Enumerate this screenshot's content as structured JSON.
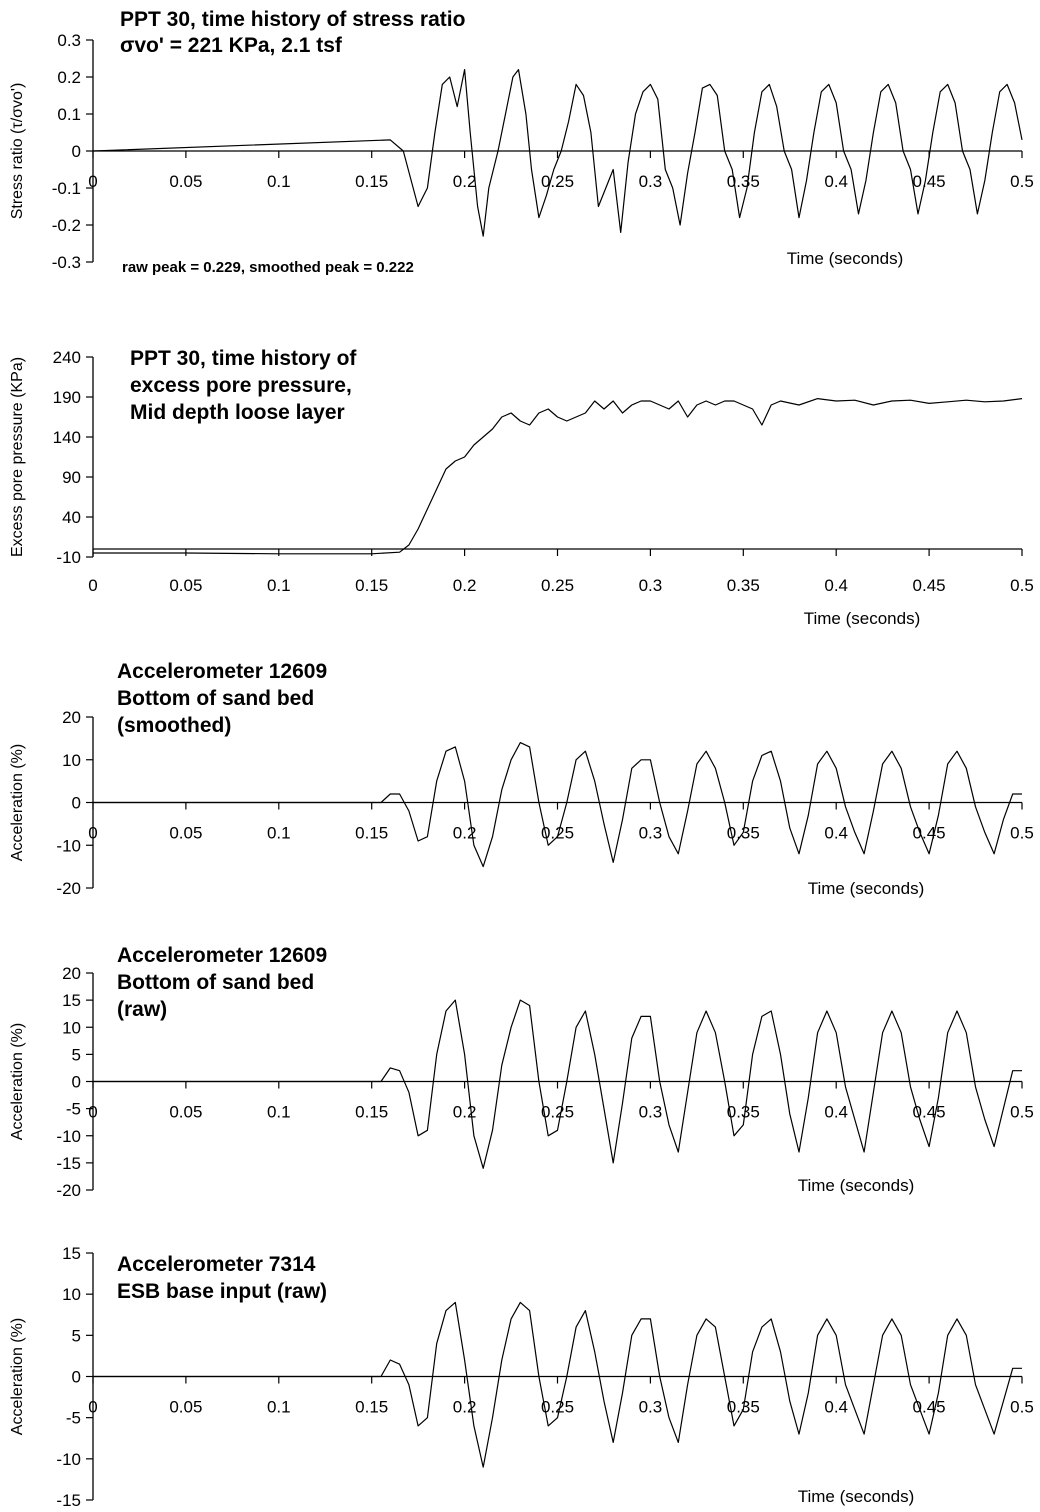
{
  "chart_data": [
    {
      "type": "line",
      "title": [
        "PPT 30, time history of stress ratio",
        "σvo' = 221 KPa, 2.1 tsf"
      ],
      "annotation": "raw peak = 0.229, smoothed peak = 0.222",
      "xlabel": "Time (seconds)",
      "ylabel": "Stress ratio (τ/σvo')",
      "xlim": [
        0,
        0.5
      ],
      "ylim": [
        -0.3,
        0.3
      ],
      "x_ticks": [
        "0",
        "0.05",
        "0.1",
        "0.15",
        "0.2",
        "0.25",
        "0.3",
        "0.35",
        "0.4",
        "0.45",
        "0.5"
      ],
      "y_ticks": [
        "0.3",
        "0.2",
        "0.1",
        "0",
        "-0.1",
        "-0.2",
        "-0.3"
      ],
      "series": [
        {
          "x": [
            0,
            0.16,
            0.167,
            0.175,
            0.18,
            0.184,
            0.188,
            0.192,
            0.196,
            0.2,
            0.203,
            0.207,
            0.21,
            0.213,
            0.218,
            0.222,
            0.226,
            0.229,
            0.233,
            0.236,
            0.24,
            0.244,
            0.248,
            0.252,
            0.256,
            0.26,
            0.264,
            0.268,
            0.272,
            0.276,
            0.28,
            0.284,
            0.288,
            0.292,
            0.296,
            0.3,
            0.304,
            0.308,
            0.312,
            0.316,
            0.32,
            0.324,
            0.328,
            0.332,
            0.336,
            0.34,
            0.344,
            0.348,
            0.352,
            0.356,
            0.36,
            0.364,
            0.368,
            0.372,
            0.376,
            0.38,
            0.384,
            0.388,
            0.392,
            0.396,
            0.4,
            0.404,
            0.408,
            0.412,
            0.416,
            0.42,
            0.424,
            0.428,
            0.432,
            0.436,
            0.44,
            0.444,
            0.448,
            0.452,
            0.456,
            0.46,
            0.464,
            0.468,
            0.472,
            0.476,
            0.48,
            0.484,
            0.488,
            0.492,
            0.496,
            0.5
          ],
          "y": [
            0,
            0.03,
            0.0,
            -0.15,
            -0.1,
            0.05,
            0.18,
            0.2,
            0.12,
            0.22,
            0.05,
            -0.15,
            -0.23,
            -0.1,
            0.0,
            0.1,
            0.2,
            0.22,
            0.1,
            -0.05,
            -0.18,
            -0.12,
            -0.05,
            0.0,
            0.08,
            0.18,
            0.15,
            0.05,
            -0.15,
            -0.1,
            -0.05,
            -0.22,
            -0.03,
            0.1,
            0.16,
            0.18,
            0.14,
            -0.05,
            -0.1,
            -0.2,
            -0.06,
            0.05,
            0.17,
            0.18,
            0.15,
            0.0,
            -0.05,
            -0.18,
            -0.1,
            0.05,
            0.16,
            0.18,
            0.12,
            0.0,
            -0.05,
            -0.18,
            -0.08,
            0.05,
            0.16,
            0.18,
            0.13,
            0.0,
            -0.05,
            -0.17,
            -0.08,
            0.05,
            0.16,
            0.18,
            0.13,
            0.0,
            -0.05,
            -0.17,
            -0.08,
            0.05,
            0.16,
            0.18,
            0.13,
            0.0,
            -0.05,
            -0.17,
            -0.08,
            0.05,
            0.16,
            0.18,
            0.13,
            0.03
          ]
        }
      ]
    },
    {
      "type": "line",
      "title": [
        "PPT 30, time history of",
        "excess pore pressure,",
        "Mid depth loose layer"
      ],
      "xlabel": "Time (seconds)",
      "ylabel": "Excess pore pressure (KPa)",
      "xlim": [
        0,
        0.5
      ],
      "ylim": [
        -10,
        240
      ],
      "x_ticks": [
        "0",
        "0.05",
        "0.1",
        "0.15",
        "0.2",
        "0.25",
        "0.3",
        "0.35",
        "0.4",
        "0.45",
        "0.5"
      ],
      "y_ticks": [
        "240",
        "190",
        "140",
        "90",
        "40",
        "-10"
      ],
      "series": [
        {
          "x": [
            0,
            0.05,
            0.1,
            0.15,
            0.165,
            0.17,
            0.175,
            0.18,
            0.185,
            0.19,
            0.195,
            0.2,
            0.205,
            0.21,
            0.215,
            0.22,
            0.225,
            0.23,
            0.235,
            0.24,
            0.245,
            0.25,
            0.255,
            0.26,
            0.265,
            0.27,
            0.275,
            0.28,
            0.285,
            0.29,
            0.295,
            0.3,
            0.305,
            0.31,
            0.315,
            0.32,
            0.325,
            0.33,
            0.335,
            0.34,
            0.345,
            0.35,
            0.355,
            0.36,
            0.365,
            0.37,
            0.38,
            0.39,
            0.4,
            0.41,
            0.42,
            0.43,
            0.44,
            0.45,
            0.46,
            0.47,
            0.48,
            0.49,
            0.5
          ],
          "y": [
            -5,
            -5,
            -6,
            -6,
            -4,
            5,
            25,
            50,
            75,
            100,
            110,
            115,
            130,
            140,
            150,
            165,
            170,
            160,
            155,
            170,
            175,
            165,
            160,
            165,
            170,
            185,
            175,
            185,
            170,
            180,
            185,
            185,
            180,
            175,
            185,
            165,
            180,
            185,
            180,
            185,
            185,
            180,
            175,
            155,
            180,
            185,
            180,
            188,
            185,
            186,
            180,
            185,
            186,
            182,
            184,
            186,
            184,
            185,
            188
          ]
        }
      ]
    },
    {
      "type": "line",
      "title": [
        "Accelerometer 12609",
        "Bottom of sand bed",
        "(smoothed)"
      ],
      "xlabel": "Time (seconds)",
      "ylabel": "Acceleration (%)",
      "xlim": [
        0,
        0.5
      ],
      "ylim": [
        -20,
        20
      ],
      "x_ticks": [
        "0",
        "0.05",
        "0.1",
        "0.15",
        "0.2",
        "0.25",
        "0.3",
        "0.35",
        "0.4",
        "0.45",
        "0.5"
      ],
      "y_ticks": [
        "20",
        "10",
        "0",
        "-10",
        "-20"
      ],
      "series": [
        {
          "x": [
            0,
            0.155,
            0.16,
            0.165,
            0.17,
            0.175,
            0.18,
            0.185,
            0.19,
            0.195,
            0.2,
            0.205,
            0.21,
            0.215,
            0.22,
            0.225,
            0.23,
            0.235,
            0.24,
            0.245,
            0.25,
            0.255,
            0.26,
            0.265,
            0.27,
            0.275,
            0.28,
            0.285,
            0.29,
            0.295,
            0.3,
            0.305,
            0.31,
            0.315,
            0.32,
            0.325,
            0.33,
            0.335,
            0.34,
            0.345,
            0.35,
            0.355,
            0.36,
            0.365,
            0.37,
            0.375,
            0.38,
            0.385,
            0.39,
            0.395,
            0.4,
            0.405,
            0.41,
            0.415,
            0.42,
            0.425,
            0.43,
            0.435,
            0.44,
            0.445,
            0.45,
            0.455,
            0.46,
            0.465,
            0.47,
            0.475,
            0.48,
            0.485,
            0.49,
            0.495,
            0.5
          ],
          "y": [
            0,
            0,
            2,
            2,
            -2,
            -9,
            -8,
            5,
            12,
            13,
            5,
            -10,
            -15,
            -8,
            3,
            10,
            14,
            13,
            0,
            -10,
            -8,
            0,
            10,
            12,
            5,
            -5,
            -14,
            -4,
            8,
            10,
            10,
            0,
            -8,
            -12,
            -2,
            9,
            12,
            8,
            0,
            -10,
            -7,
            5,
            11,
            12,
            5,
            -6,
            -12,
            -3,
            9,
            12,
            8,
            -1,
            -7,
            -12,
            -2,
            9,
            12,
            8,
            -1,
            -7,
            -12,
            -3,
            9,
            12,
            8,
            -1,
            -7,
            -12,
            -4,
            2,
            2
          ]
        }
      ]
    },
    {
      "type": "line",
      "title": [
        "Accelerometer 12609",
        "Bottom of sand bed",
        "(raw)"
      ],
      "xlabel": "Time (seconds)",
      "ylabel": "Acceleration (%)",
      "xlim": [
        0,
        0.5
      ],
      "ylim": [
        -20,
        20
      ],
      "x_ticks": [
        "0",
        "0.05",
        "0.1",
        "0.15",
        "0.2",
        "0.25",
        "0.3",
        "0.35",
        "0.4",
        "0.45",
        "0.5"
      ],
      "y_ticks": [
        "20",
        "15",
        "10",
        "5",
        "0",
        "-5",
        "-10",
        "-15",
        "-20"
      ],
      "series": [
        {
          "x": [
            0,
            0.155,
            0.16,
            0.165,
            0.17,
            0.175,
            0.18,
            0.185,
            0.19,
            0.195,
            0.2,
            0.205,
            0.21,
            0.215,
            0.22,
            0.225,
            0.23,
            0.235,
            0.24,
            0.245,
            0.25,
            0.255,
            0.26,
            0.265,
            0.27,
            0.275,
            0.28,
            0.285,
            0.29,
            0.295,
            0.3,
            0.305,
            0.31,
            0.315,
            0.32,
            0.325,
            0.33,
            0.335,
            0.34,
            0.345,
            0.35,
            0.355,
            0.36,
            0.365,
            0.37,
            0.375,
            0.38,
            0.385,
            0.39,
            0.395,
            0.4,
            0.405,
            0.41,
            0.415,
            0.42,
            0.425,
            0.43,
            0.435,
            0.44,
            0.445,
            0.45,
            0.455,
            0.46,
            0.465,
            0.47,
            0.475,
            0.48,
            0.485,
            0.49,
            0.495,
            0.5
          ],
          "y": [
            0,
            0,
            2.5,
            2,
            -2,
            -10,
            -9,
            5,
            13,
            15,
            5,
            -10,
            -16,
            -9,
            3,
            10,
            15,
            14,
            0,
            -10,
            -9,
            0,
            10,
            13,
            5,
            -5,
            -15,
            -4,
            8,
            12,
            12,
            0,
            -8,
            -13,
            -2,
            9,
            13,
            9,
            0,
            -10,
            -8,
            5,
            12,
            13,
            5,
            -6,
            -13,
            -3,
            9,
            13,
            9,
            -1,
            -7,
            -13,
            -2,
            9,
            13,
            9,
            -1,
            -7,
            -12,
            -3,
            9,
            13,
            9,
            -1,
            -7,
            -12,
            -5,
            2,
            2
          ]
        }
      ]
    },
    {
      "type": "line",
      "title": [
        "Accelerometer 7314",
        "ESB base input (raw)"
      ],
      "xlabel": "Time (seconds)",
      "ylabel": "Acceleration (%)",
      "xlim": [
        0,
        0.5
      ],
      "ylim": [
        -15,
        15
      ],
      "x_ticks": [
        "0",
        "0.05",
        "0.1",
        "0.15",
        "0.2",
        "0.25",
        "0.3",
        "0.35",
        "0.4",
        "0.45",
        "0.5"
      ],
      "y_ticks": [
        "15",
        "10",
        "5",
        "0",
        "-5",
        "-10",
        "-15"
      ],
      "series": [
        {
          "x": [
            0,
            0.155,
            0.16,
            0.165,
            0.17,
            0.175,
            0.18,
            0.185,
            0.19,
            0.195,
            0.2,
            0.205,
            0.21,
            0.215,
            0.22,
            0.225,
            0.23,
            0.235,
            0.24,
            0.245,
            0.25,
            0.255,
            0.26,
            0.265,
            0.27,
            0.275,
            0.28,
            0.285,
            0.29,
            0.295,
            0.3,
            0.305,
            0.31,
            0.315,
            0.32,
            0.325,
            0.33,
            0.335,
            0.34,
            0.345,
            0.35,
            0.355,
            0.36,
            0.365,
            0.37,
            0.375,
            0.38,
            0.385,
            0.39,
            0.395,
            0.4,
            0.405,
            0.41,
            0.415,
            0.42,
            0.425,
            0.43,
            0.435,
            0.44,
            0.445,
            0.45,
            0.455,
            0.46,
            0.465,
            0.47,
            0.475,
            0.48,
            0.485,
            0.49,
            0.495,
            0.5
          ],
          "y": [
            0,
            0,
            2,
            1.5,
            -1,
            -6,
            -5,
            4,
            8,
            9,
            2,
            -6,
            -11,
            -5,
            2,
            7,
            9,
            8,
            0,
            -6,
            -5,
            0,
            6,
            8,
            3,
            -3,
            -8,
            -2,
            5,
            7,
            7,
            0,
            -5,
            -8,
            -1,
            5,
            7,
            6,
            0,
            -6,
            -4,
            3,
            6,
            7,
            3,
            -3,
            -7,
            -2,
            5,
            7,
            5,
            -1,
            -4,
            -7,
            -1,
            5,
            7,
            5,
            -1,
            -4,
            -7,
            -2,
            5,
            7,
            5,
            -1,
            -4,
            -7,
            -3,
            1,
            1
          ]
        }
      ]
    }
  ]
}
